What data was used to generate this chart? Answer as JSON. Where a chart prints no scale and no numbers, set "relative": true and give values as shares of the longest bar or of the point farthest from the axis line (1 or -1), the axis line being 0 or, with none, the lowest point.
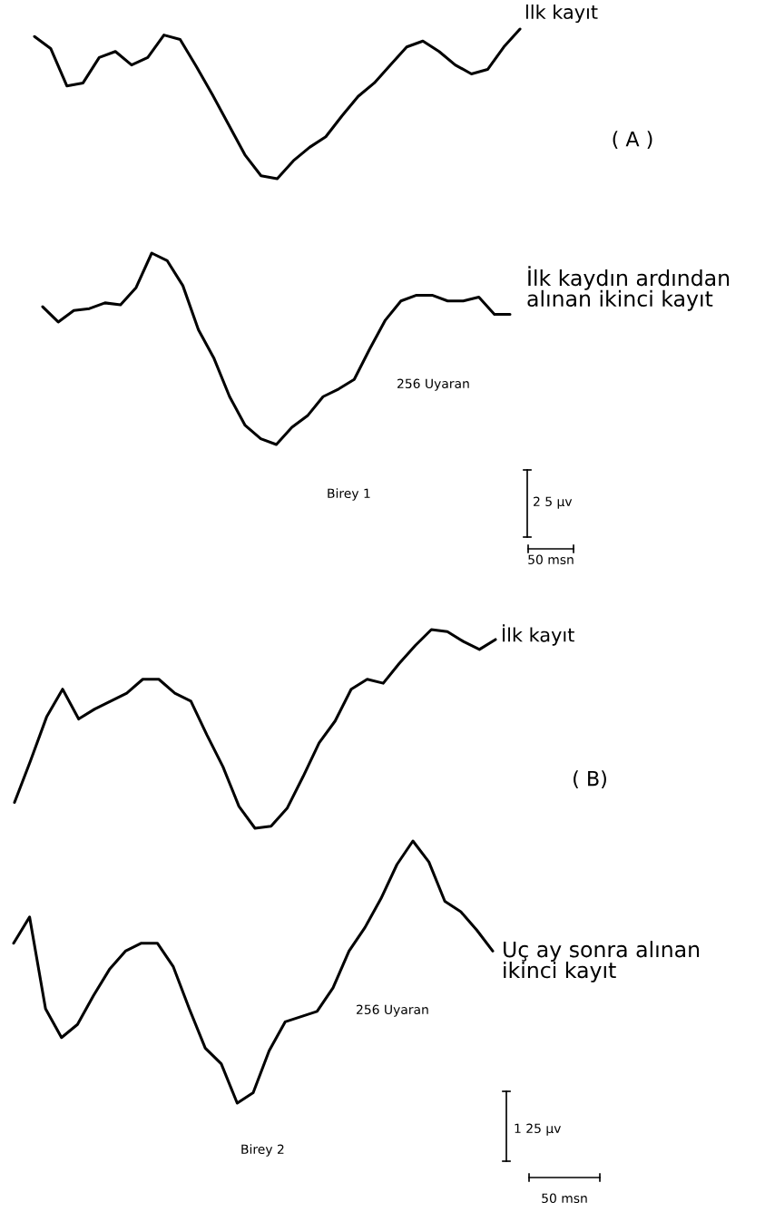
{
  "chart_data": [
    {
      "type": "line",
      "relative": true,
      "categories": [
        null,
        null,
        null,
        null,
        null,
        null,
        null,
        null,
        null,
        null,
        null,
        null,
        null,
        null,
        null,
        null,
        null,
        null,
        null,
        null,
        null,
        null,
        null,
        null,
        null,
        null,
        null,
        null,
        null,
        null,
        null
      ],
      "series": [
        {
          "name": "llk kayıt",
          "color": "#000000",
          "values": [
            0.95,
            0.87,
            0.62,
            0.64,
            0.81,
            0.85,
            0.76,
            0.81,
            0.96,
            0.93,
            0.75,
            0.56,
            0.36,
            0.16,
            0.02,
            0.0,
            0.12,
            0.21,
            0.28,
            0.42,
            0.55,
            0.64,
            0.76,
            0.88,
            0.92,
            0.85,
            0.76,
            0.7,
            0.73,
            0.88,
            1.0
          ]
        }
      ],
      "annotations": [
        "( A )"
      ]
    },
    {
      "type": "line",
      "relative": true,
      "categories": [
        null,
        null,
        null,
        null,
        null,
        null,
        null,
        null,
        null,
        null,
        null,
        null,
        null,
        null,
        null,
        null,
        null,
        null,
        null,
        null,
        null,
        null,
        null,
        null,
        null,
        null,
        null,
        null,
        null,
        null,
        null
      ],
      "series": [
        {
          "name": "İlk kaydın ardından alınan ikinci kayıt",
          "color": "#000000",
          "values": [
            0.72,
            0.64,
            0.7,
            0.71,
            0.74,
            0.73,
            0.82,
            1.0,
            0.96,
            0.83,
            0.6,
            0.45,
            0.25,
            0.1,
            0.03,
            0.0,
            0.09,
            0.15,
            0.25,
            0.29,
            0.34,
            0.5,
            0.65,
            0.75,
            0.78,
            0.78,
            0.75,
            0.75,
            0.77,
            0.68,
            0.68
          ]
        }
      ],
      "annotations": [
        "256 Uyaran",
        "Birey 1",
        "2 5 µv",
        "50 msn"
      ]
    },
    {
      "type": "line",
      "relative": true,
      "categories": [
        null,
        null,
        null,
        null,
        null,
        null,
        null,
        null,
        null,
        null,
        null,
        null,
        null,
        null,
        null,
        null,
        null,
        null,
        null,
        null,
        null,
        null,
        null,
        null,
        null,
        null,
        null,
        null,
        null,
        null,
        null
      ],
      "series": [
        {
          "name": "İlk kayıt",
          "color": "#000000",
          "values": [
            0.13,
            0.34,
            0.56,
            0.7,
            0.55,
            0.6,
            0.64,
            0.68,
            0.75,
            0.75,
            0.68,
            0.64,
            0.47,
            0.31,
            0.11,
            0.0,
            0.01,
            0.1,
            0.26,
            0.43,
            0.54,
            0.7,
            0.75,
            0.73,
            0.83,
            0.92,
            1.0,
            0.99,
            0.94,
            0.9,
            0.95
          ]
        }
      ],
      "annotations": [
        "( B)"
      ]
    },
    {
      "type": "line",
      "relative": true,
      "categories": [
        null,
        null,
        null,
        null,
        null,
        null,
        null,
        null,
        null,
        null,
        null,
        null,
        null,
        null,
        null,
        null,
        null,
        null,
        null,
        null,
        null,
        null,
        null,
        null,
        null,
        null,
        null,
        null,
        null,
        null,
        null
      ],
      "series": [
        {
          "name": "Uç ay sonra alınan ikinci kayıt",
          "color": "#000000",
          "values": [
            0.61,
            0.71,
            0.36,
            0.25,
            0.3,
            0.41,
            0.51,
            0.58,
            0.61,
            0.61,
            0.52,
            0.36,
            0.21,
            0.15,
            0.0,
            0.04,
            0.2,
            0.31,
            0.33,
            0.35,
            0.44,
            0.58,
            0.67,
            0.78,
            0.91,
            1.0,
            0.92,
            0.77,
            0.73,
            0.66,
            0.58
          ]
        }
      ],
      "annotations": [
        "256 Uyaran",
        "Birey 2",
        "1 25 µv",
        "50 msn"
      ]
    }
  ]
}
